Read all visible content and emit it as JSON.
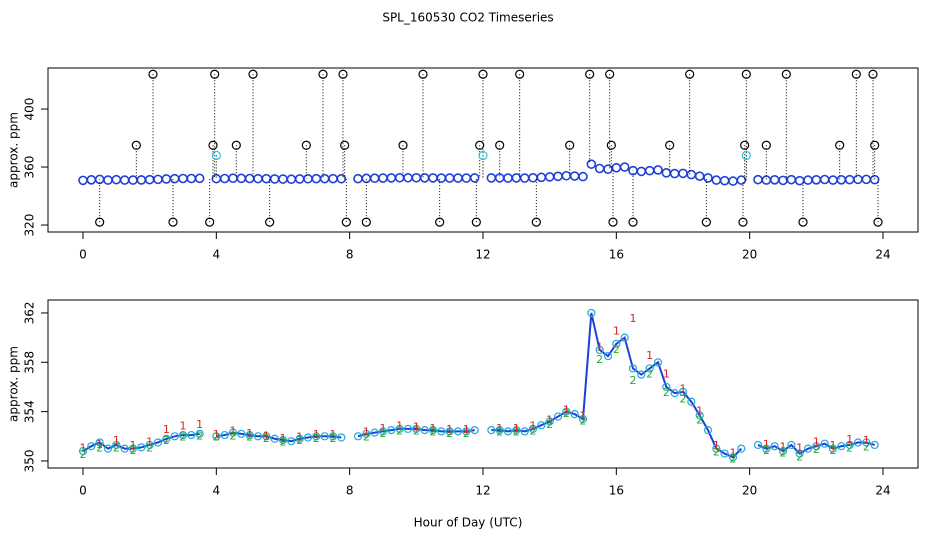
{
  "chart_data": [
    {
      "type": "scatter",
      "title": "SPL_160530  CO2 Timeseries",
      "ylabel": "approx. ppm",
      "xlim": [
        -1.05,
        25.05
      ],
      "ylim": [
        315.2,
        428.3
      ],
      "xticks": [
        0,
        4,
        8,
        12,
        16,
        20,
        24
      ],
      "yticks": [
        320,
        360,
        400
      ],
      "series": [
        {
          "style": "points",
          "color": "#1f3fd6",
          "x": [
            0,
            0.25,
            0.5,
            0.75,
            1,
            1.25,
            1.5,
            1.75,
            2,
            2.25,
            2.5,
            2.75,
            3,
            3.25,
            3.5,
            3.75,
            4,
            4.25,
            4.5,
            4.75,
            5,
            5.25,
            5.5,
            5.75,
            6,
            6.25,
            6.5,
            6.75,
            7,
            7.25,
            7.5,
            7.75,
            8,
            8.25,
            8.5,
            8.75,
            9,
            9.25,
            9.5,
            9.75,
            10,
            10.25,
            10.5,
            10.75,
            11,
            11.25,
            11.5,
            11.75,
            12,
            12.25,
            12.5,
            12.75,
            13,
            13.25,
            13.5,
            13.75,
            14,
            14.25,
            14.5,
            14.75,
            15,
            15.25,
            15.5,
            15.75,
            16,
            16.25,
            16.5,
            16.75,
            17,
            17.25,
            17.5,
            17.75,
            18,
            18.25,
            18.5,
            18.75,
            19,
            19.25,
            19.5,
            19.75,
            20,
            20.25,
            20.5,
            20.75,
            21,
            21.25,
            21.5,
            21.75,
            22,
            22.25,
            22.5,
            22.75,
            23,
            23.25,
            23.5,
            23.75
          ],
          "values": [
            350.8,
            351.2,
            351.5,
            351.0,
            351.3,
            351.0,
            351.0,
            351.1,
            351.3,
            351.5,
            351.8,
            352.0,
            352.1,
            352.1,
            352.2,
            null,
            352.0,
            352.1,
            352.3,
            352.2,
            352.1,
            352.0,
            352.0,
            351.8,
            351.7,
            351.6,
            351.8,
            351.9,
            352.0,
            352.0,
            352.0,
            351.9,
            null,
            352.0,
            352.2,
            352.3,
            352.4,
            352.5,
            352.6,
            352.6,
            352.6,
            352.5,
            352.5,
            352.4,
            352.4,
            352.4,
            352.4,
            352.5,
            null,
            352.5,
            352.5,
            352.4,
            352.5,
            352.4,
            352.6,
            352.9,
            353.2,
            353.6,
            354.0,
            353.8,
            353.4,
            362.0,
            359.0,
            358.5,
            359.5,
            360.0,
            357.5,
            357.0,
            357.5,
            358.0,
            356.0,
            355.5,
            355.6,
            354.8,
            353.7,
            352.5,
            351.0,
            350.6,
            350.3,
            351.0,
            null,
            351.3,
            351.0,
            351.2,
            350.8,
            351.3,
            350.6,
            351.0,
            351.2,
            351.4,
            351.0,
            351.2,
            351.3,
            351.5,
            351.5,
            351.3
          ]
        },
        {
          "style": "outliers",
          "color": "#000000",
          "x": [
            0.5,
            1.6,
            2.1,
            2.7,
            3.8,
            3.9,
            3.95,
            4.6,
            5.1,
            5.6,
            6.7,
            7.2,
            7.8,
            7.85,
            7.9,
            8.5,
            9.6,
            10.2,
            10.7,
            11.8,
            11.9,
            12.0,
            12.5,
            13.1,
            13.6,
            14.6,
            15.2,
            15.8,
            15.85,
            15.9,
            16.5,
            17.6,
            18.2,
            18.7,
            19.8,
            19.85,
            19.9,
            20.5,
            21.1,
            21.6,
            22.7,
            23.2,
            23.7,
            23.75,
            23.85
          ],
          "values": [
            322,
            375,
            424,
            322,
            322,
            375,
            424,
            375,
            424,
            322,
            375,
            424,
            424,
            375,
            322,
            322,
            375,
            424,
            322,
            322,
            375,
            424,
            375,
            424,
            322,
            375,
            424,
            424,
            375,
            322,
            322,
            375,
            424,
            322,
            322,
            375,
            424,
            375,
            424,
            322,
            375,
            424,
            424,
            375,
            322
          ]
        },
        {
          "style": "outliers",
          "color": "#22c8d8",
          "x": [
            4.0,
            12.0,
            19.9
          ],
          "values": [
            368,
            368,
            368
          ]
        }
      ]
    },
    {
      "type": "line",
      "ylabel": "approx. ppm",
      "xlabel": "Hour of Day (UTC)",
      "xlim": [
        -1.05,
        25.05
      ],
      "ylim": [
        349.43,
        363.05
      ],
      "xticks": [
        0,
        4,
        8,
        12,
        16,
        20,
        24
      ],
      "yticks": [
        350,
        354,
        358,
        362
      ],
      "series": [
        {
          "style": "line",
          "color": "#1f3fd6",
          "marker_color": "#22a8d8",
          "x": [
            0,
            0.25,
            0.5,
            0.75,
            1,
            1.25,
            1.5,
            1.75,
            2,
            2.25,
            2.5,
            2.75,
            3,
            3.25,
            3.5,
            3.75,
            4,
            4.25,
            4.5,
            4.75,
            5,
            5.25,
            5.5,
            5.75,
            6,
            6.25,
            6.5,
            6.75,
            7,
            7.25,
            7.5,
            7.75,
            8,
            8.25,
            8.5,
            8.75,
            9,
            9.25,
            9.5,
            9.75,
            10,
            10.25,
            10.5,
            10.75,
            11,
            11.25,
            11.5,
            11.75,
            12,
            12.25,
            12.5,
            12.75,
            13,
            13.25,
            13.5,
            13.75,
            14,
            14.25,
            14.5,
            14.75,
            15,
            15.25,
            15.5,
            15.75,
            16,
            16.25,
            16.5,
            16.75,
            17,
            17.25,
            17.5,
            17.75,
            18,
            18.25,
            18.5,
            18.75,
            19,
            19.25,
            19.5,
            19.75,
            20,
            20.25,
            20.5,
            20.75,
            21,
            21.25,
            21.5,
            21.75,
            22,
            22.25,
            22.5,
            22.75,
            23,
            23.25,
            23.5,
            23.75
          ],
          "values": [
            350.8,
            351.2,
            351.5,
            351.0,
            351.3,
            351.0,
            351.0,
            351.1,
            351.3,
            351.5,
            351.8,
            352.0,
            352.1,
            352.1,
            352.2,
            null,
            352.0,
            352.1,
            352.3,
            352.2,
            352.1,
            352.0,
            352.0,
            351.8,
            351.7,
            351.6,
            351.8,
            351.9,
            352.0,
            352.0,
            352.0,
            351.9,
            null,
            352.0,
            352.2,
            352.3,
            352.4,
            352.5,
            352.6,
            352.6,
            352.6,
            352.5,
            352.5,
            352.4,
            352.4,
            352.4,
            352.4,
            352.5,
            null,
            352.5,
            352.5,
            352.4,
            352.5,
            352.4,
            352.6,
            352.9,
            353.2,
            353.6,
            354.0,
            353.8,
            353.4,
            362.0,
            359.0,
            358.5,
            359.5,
            360.0,
            357.5,
            357.0,
            357.5,
            358.0,
            356.0,
            355.5,
            355.6,
            354.8,
            353.7,
            352.5,
            351.0,
            350.6,
            350.3,
            351.0,
            null,
            351.3,
            351.0,
            351.2,
            350.8,
            351.3,
            350.6,
            351.0,
            351.2,
            351.4,
            351.0,
            351.2,
            351.3,
            351.5,
            351.5,
            351.3
          ]
        },
        {
          "style": "symbol",
          "symbol": "1",
          "color": "#e02020",
          "x": [
            0,
            0.5,
            1,
            1.5,
            2,
            2.5,
            3,
            3.5,
            4,
            4.5,
            5,
            5.5,
            6,
            6.5,
            7,
            7.5,
            8,
            8.5,
            9,
            9.5,
            10,
            10.5,
            11,
            11.5,
            12,
            12.5,
            13,
            13.5,
            14,
            14.5,
            15,
            15.5,
            16,
            16.5,
            17,
            17.5,
            18,
            18.5,
            19,
            19.5,
            20,
            20.5,
            21,
            21.5,
            22,
            22.5,
            23,
            23.5
          ],
          "values": [
            351.0,
            351.3,
            351.6,
            351.2,
            351.5,
            352.5,
            352.8,
            352.9,
            352.1,
            352.4,
            352.2,
            352.0,
            351.8,
            351.9,
            352.1,
            352.1,
            null,
            352.3,
            352.6,
            352.8,
            352.7,
            352.6,
            352.5,
            352.5,
            null,
            352.6,
            352.6,
            352.8,
            353.3,
            354.1,
            353.6,
            359.2,
            360.5,
            361.5,
            358.5,
            357.0,
            355.8,
            354.0,
            351.2,
            350.6,
            null,
            351.3,
            351.1,
            351.0,
            351.5,
            351.2,
            351.7,
            351.6
          ]
        },
        {
          "style": "symbol",
          "symbol": "2",
          "color": "#20b020",
          "x": [
            0,
            0.5,
            1,
            1.5,
            2,
            2.5,
            3,
            3.5,
            4,
            4.5,
            5,
            5.5,
            6,
            6.5,
            7,
            7.5,
            8,
            8.5,
            9,
            9.5,
            10,
            10.5,
            11,
            11.5,
            12,
            12.5,
            13,
            13.5,
            14,
            14.5,
            15,
            15.5,
            16,
            16.5,
            17,
            17.5,
            18,
            18.5,
            19,
            19.5,
            20,
            20.5,
            21,
            21.5,
            22,
            22.5,
            23,
            23.5
          ],
          "values": [
            350.5,
            351.0,
            351.0,
            350.8,
            351.0,
            351.6,
            351.9,
            352.0,
            351.9,
            352.0,
            351.9,
            351.8,
            351.5,
            351.6,
            351.8,
            351.8,
            null,
            351.9,
            352.2,
            352.4,
            352.4,
            352.3,
            352.2,
            352.2,
            null,
            352.3,
            352.3,
            352.4,
            352.9,
            353.8,
            353.2,
            358.2,
            359.0,
            356.5,
            357.0,
            355.5,
            355.0,
            353.3,
            350.7,
            350.1,
            null,
            350.8,
            350.6,
            350.3,
            350.9,
            350.8,
            351.0,
            351.1
          ]
        }
      ]
    }
  ]
}
